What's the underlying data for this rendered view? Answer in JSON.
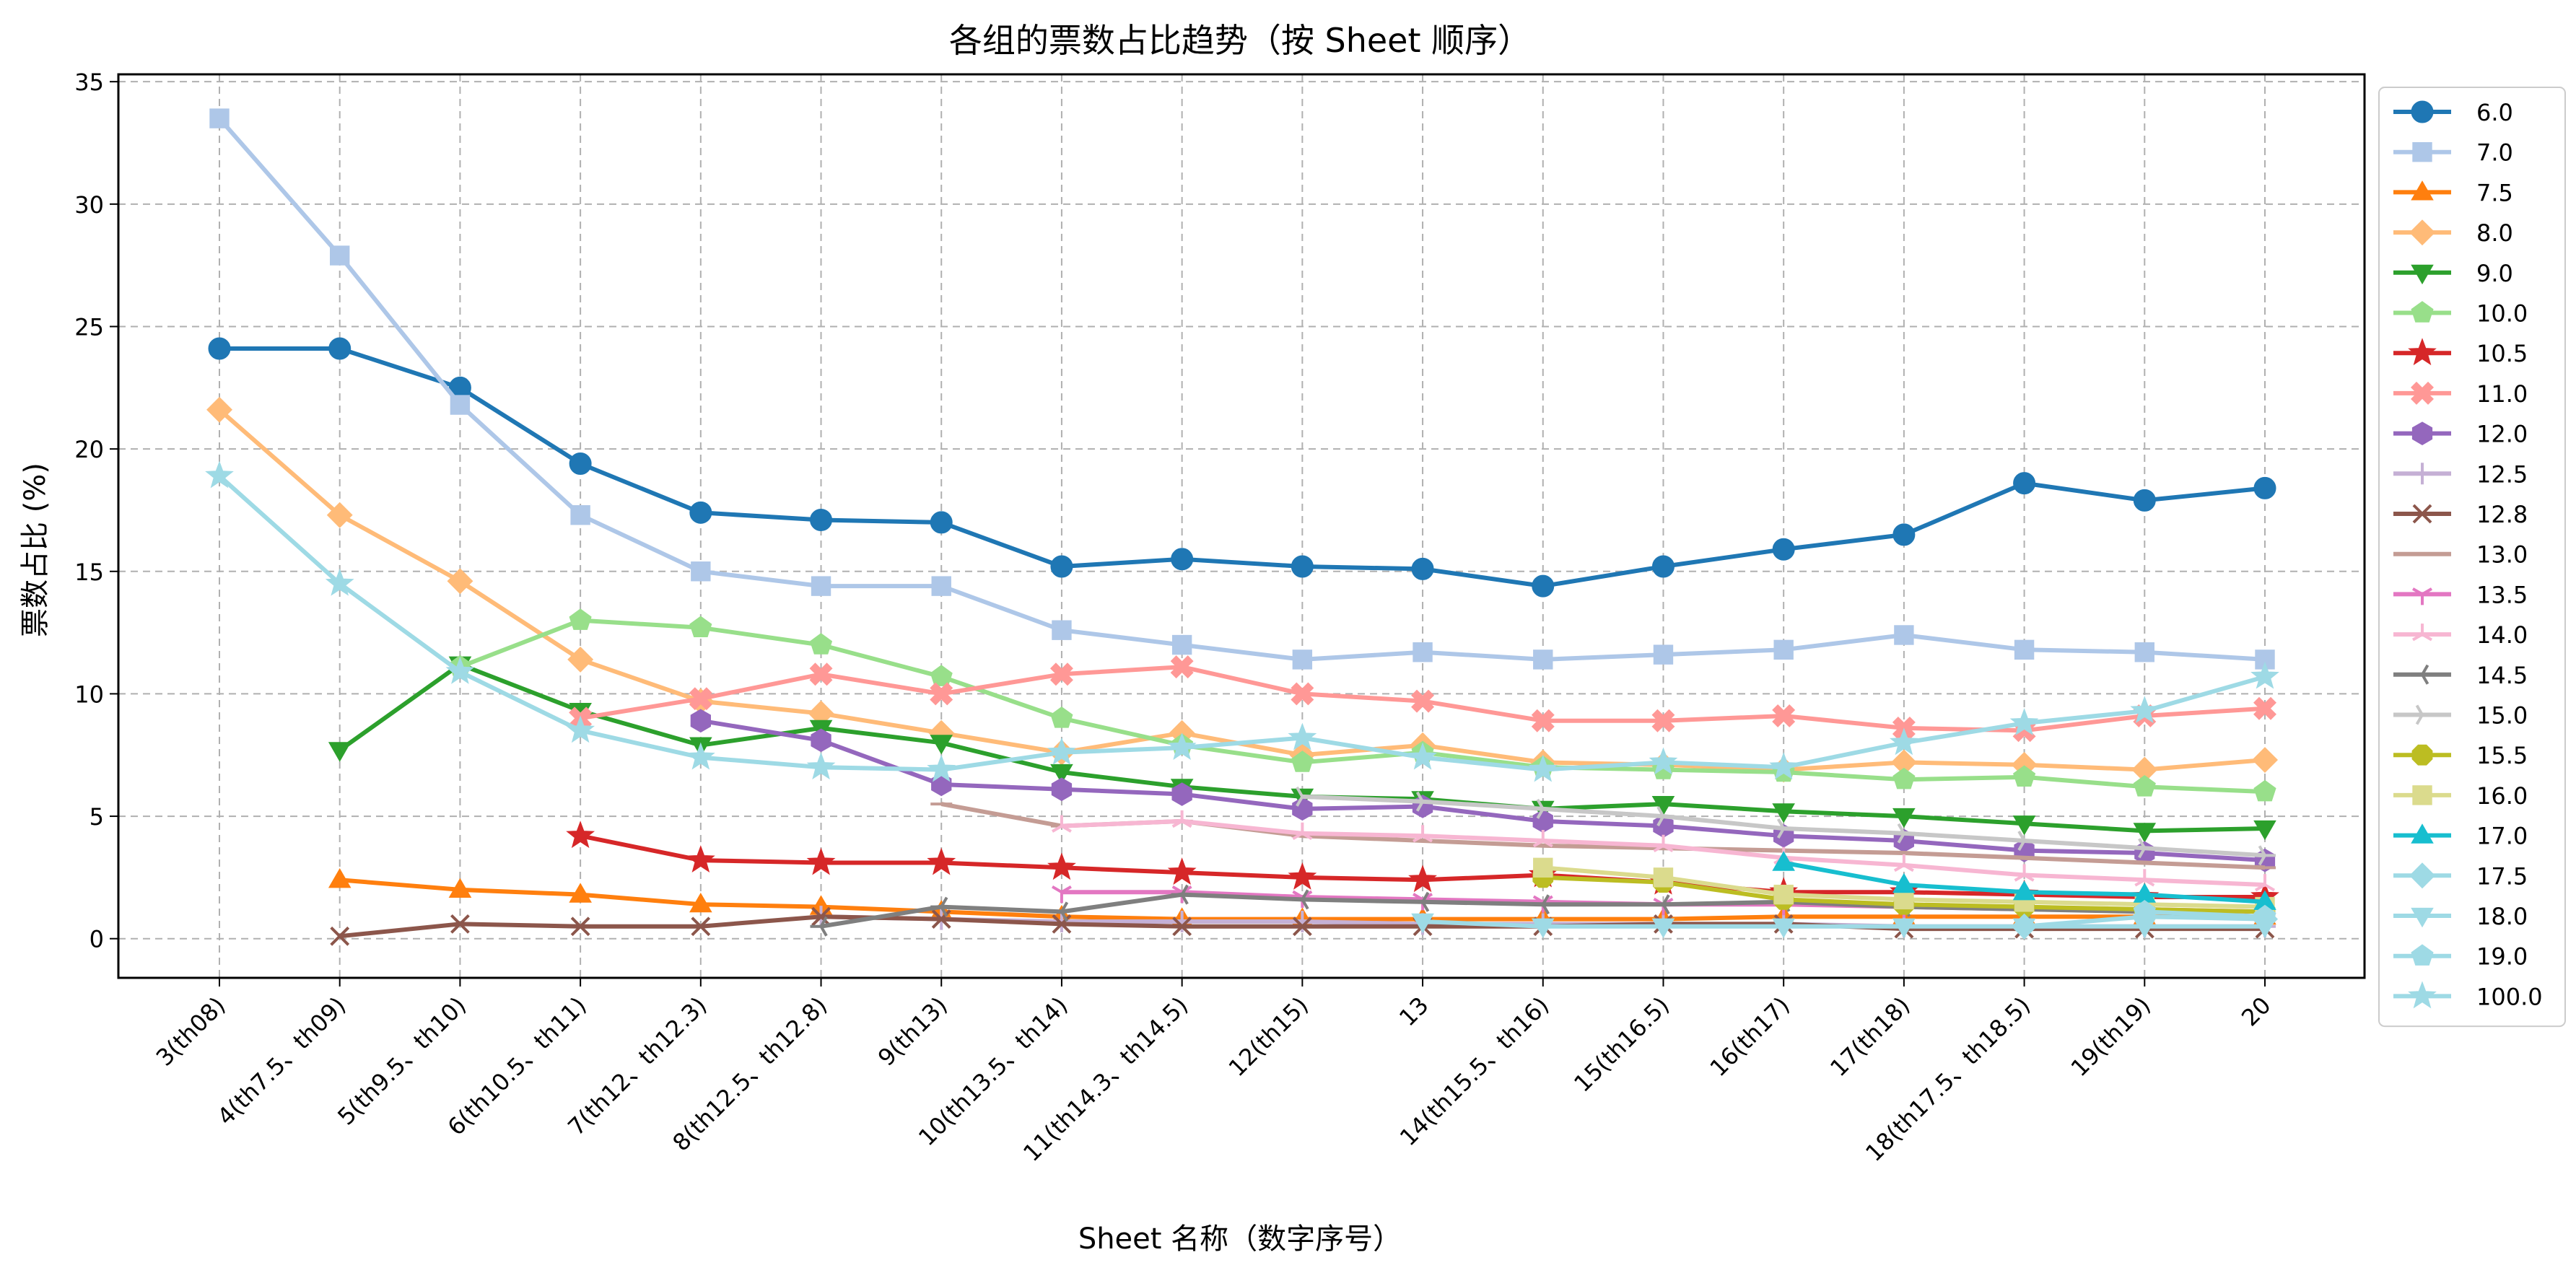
{
  "chart_data": {
    "type": "line",
    "title": "各组的票数占比趋势（按 Sheet 顺序）",
    "xlabel": "Sheet 名称（数字序号）",
    "ylabel": "票数占比 (%)",
    "categories": [
      "3(th08)",
      "4(th7.5、th09)",
      "5(th9.5、th10)",
      "6(th10.5、th11)",
      "7(th12、th12.3)",
      "8(th12.5、th12.8)",
      "9(th13)",
      "10(th13.5、th14)",
      "11(th14.3、th14.5)",
      "12(th15)",
      "13",
      "14(th15.5、th16)",
      "15(th16.5)",
      "16(th17)",
      "17(th18)",
      "18(th17.5、th18.5)",
      "19(th19)",
      "20"
    ],
    "ylim": [
      -1.6,
      35.3
    ],
    "yticks": [
      0,
      5,
      10,
      15,
      20,
      25,
      30,
      35
    ],
    "grid": true,
    "legend_position": "outside-right",
    "series": [
      {
        "name": "6.0",
        "color": "#1f77b4",
        "marker": "circle",
        "values": [
          24.1,
          24.1,
          22.5,
          19.4,
          17.4,
          17.1,
          17.0,
          15.2,
          15.5,
          15.2,
          15.1,
          14.4,
          15.2,
          15.9,
          16.5,
          18.6,
          17.9,
          18.4
        ]
      },
      {
        "name": "7.0",
        "color": "#aec7e8",
        "marker": "square",
        "values": [
          33.5,
          27.9,
          21.8,
          17.3,
          15.0,
          14.4,
          14.4,
          12.6,
          12.0,
          11.4,
          11.7,
          11.4,
          11.6,
          11.8,
          12.4,
          11.8,
          11.7,
          11.4
        ]
      },
      {
        "name": "7.5",
        "color": "#ff7f0e",
        "marker": "triangle-up",
        "values": [
          null,
          2.4,
          2.0,
          1.8,
          1.4,
          1.3,
          1.1,
          0.9,
          0.8,
          0.8,
          0.8,
          0.8,
          0.8,
          0.9,
          0.9,
          0.9,
          0.9,
          0.9
        ]
      },
      {
        "name": "8.0",
        "color": "#ffbb78",
        "marker": "diamond",
        "values": [
          21.6,
          17.3,
          14.6,
          11.4,
          9.7,
          9.2,
          8.4,
          7.6,
          8.4,
          7.5,
          7.9,
          7.2,
          7.1,
          6.9,
          7.2,
          7.1,
          6.9,
          7.3
        ]
      },
      {
        "name": "9.0",
        "color": "#2ca02c",
        "marker": "triangle-down",
        "values": [
          null,
          7.7,
          11.2,
          9.3,
          7.9,
          8.6,
          8.0,
          6.8,
          6.2,
          5.8,
          5.7,
          5.3,
          5.5,
          5.2,
          5.0,
          4.7,
          4.4,
          4.5
        ]
      },
      {
        "name": "10.0",
        "color": "#98df8a",
        "marker": "pentagon",
        "values": [
          null,
          null,
          11.1,
          13.0,
          12.7,
          12.0,
          10.7,
          9.0,
          7.9,
          7.2,
          7.6,
          7.0,
          6.9,
          6.8,
          6.5,
          6.6,
          6.2,
          6.0
        ]
      },
      {
        "name": "10.5",
        "color": "#d62728",
        "marker": "star",
        "values": [
          null,
          null,
          null,
          4.2,
          3.2,
          3.1,
          3.1,
          2.9,
          2.7,
          2.5,
          2.4,
          2.6,
          2.3,
          1.9,
          1.9,
          1.8,
          1.7,
          1.7
        ]
      },
      {
        "name": "11.0",
        "color": "#ff9896",
        "marker": "x-filled",
        "values": [
          null,
          null,
          null,
          9.0,
          9.8,
          10.8,
          10.0,
          10.8,
          11.1,
          10.0,
          9.7,
          8.9,
          8.9,
          9.1,
          8.6,
          8.5,
          9.1,
          9.4
        ]
      },
      {
        "name": "12.0",
        "color": "#9467bd",
        "marker": "hexagon",
        "values": [
          null,
          null,
          null,
          null,
          8.9,
          8.1,
          6.3,
          6.1,
          5.9,
          5.3,
          5.4,
          4.8,
          4.6,
          4.2,
          4.0,
          3.6,
          3.5,
          3.2
        ]
      },
      {
        "name": "12.5",
        "color": "#c5b0d5",
        "marker": "plus",
        "values": [
          null,
          null,
          null,
          null,
          null,
          0.9,
          0.8,
          0.7,
          0.7,
          0.7,
          0.6,
          0.6,
          0.6,
          0.6,
          0.5,
          0.5,
          0.5,
          0.5
        ]
      },
      {
        "name": "12.8",
        "color": "#8c564b",
        "marker": "x",
        "values": [
          null,
          0.1,
          0.6,
          0.5,
          0.5,
          0.9,
          0.8,
          0.6,
          0.5,
          0.5,
          0.5,
          0.5,
          0.6,
          0.6,
          0.4,
          0.4,
          0.4,
          0.4
        ]
      },
      {
        "name": "13.0",
        "color": "#c49c94",
        "marker": "hline",
        "values": [
          null,
          null,
          null,
          null,
          null,
          null,
          5.5,
          4.6,
          4.8,
          4.2,
          4.0,
          3.8,
          3.7,
          3.6,
          3.5,
          3.3,
          3.1,
          2.9
        ]
      },
      {
        "name": "13.5",
        "color": "#e377c2",
        "marker": "tri-down",
        "values": [
          null,
          null,
          null,
          null,
          null,
          null,
          null,
          1.9,
          1.9,
          1.7,
          1.6,
          1.5,
          1.4,
          1.4,
          1.3,
          1.2,
          1.2,
          1.1
        ]
      },
      {
        "name": "14.0",
        "color": "#f7b6d2",
        "marker": "tri-up",
        "values": [
          null,
          null,
          null,
          null,
          null,
          null,
          null,
          4.6,
          4.8,
          4.3,
          4.2,
          4.0,
          3.8,
          3.3,
          3.0,
          2.6,
          2.4,
          2.2
        ]
      },
      {
        "name": "14.5",
        "color": "#7f7f7f",
        "marker": "tri-left",
        "values": [
          null,
          null,
          null,
          null,
          null,
          0.5,
          1.3,
          1.1,
          1.8,
          1.6,
          1.5,
          1.4,
          1.4,
          1.5,
          1.3,
          1.2,
          1.1,
          0.9
        ]
      },
      {
        "name": "15.0",
        "color": "#c7c7c7",
        "marker": "tri-right",
        "values": [
          null,
          null,
          null,
          null,
          null,
          null,
          null,
          null,
          null,
          5.8,
          5.6,
          5.3,
          5.0,
          4.5,
          4.3,
          4.0,
          3.7,
          3.4
        ]
      },
      {
        "name": "15.5",
        "color": "#bcbd22",
        "marker": "octagon",
        "values": [
          null,
          null,
          null,
          null,
          null,
          null,
          null,
          null,
          null,
          null,
          null,
          2.5,
          2.3,
          1.6,
          1.4,
          1.3,
          1.2,
          1.1
        ]
      },
      {
        "name": "16.0",
        "color": "#dbdb8d",
        "marker": "square",
        "values": [
          null,
          null,
          null,
          null,
          null,
          null,
          null,
          null,
          null,
          null,
          null,
          2.9,
          2.5,
          1.8,
          1.6,
          1.5,
          1.4,
          1.3
        ]
      },
      {
        "name": "17.0",
        "color": "#17becf",
        "marker": "triangle-up",
        "values": [
          null,
          null,
          null,
          null,
          null,
          null,
          null,
          null,
          null,
          null,
          null,
          null,
          null,
          3.1,
          2.2,
          1.9,
          1.8,
          1.5
        ]
      },
      {
        "name": "17.5",
        "color": "#9edae5",
        "marker": "diamond",
        "values": [
          null,
          null,
          null,
          null,
          null,
          null,
          null,
          null,
          null,
          null,
          null,
          null,
          null,
          null,
          null,
          0.5,
          0.9,
          0.8
        ]
      },
      {
        "name": "18.0",
        "color": "#9edae5",
        "marker": "triangle-down",
        "values": [
          null,
          null,
          null,
          null,
          null,
          null,
          null,
          null,
          null,
          null,
          0.7,
          0.5,
          0.5,
          0.5,
          0.5,
          0.5,
          0.5,
          0.5
        ]
      },
      {
        "name": "19.0",
        "color": "#9edae5",
        "marker": "pentagon",
        "values": [
          null,
          null,
          null,
          null,
          null,
          null,
          null,
          null,
          null,
          null,
          null,
          null,
          null,
          null,
          null,
          null,
          1.1,
          0.9
        ]
      },
      {
        "name": "100.0",
        "color": "#9edae5",
        "marker": "star",
        "values": [
          18.9,
          14.5,
          10.9,
          8.5,
          7.4,
          7.0,
          6.9,
          7.6,
          7.8,
          8.2,
          7.4,
          6.9,
          7.2,
          7.0,
          8.0,
          8.8,
          9.3,
          10.7
        ]
      }
    ]
  }
}
